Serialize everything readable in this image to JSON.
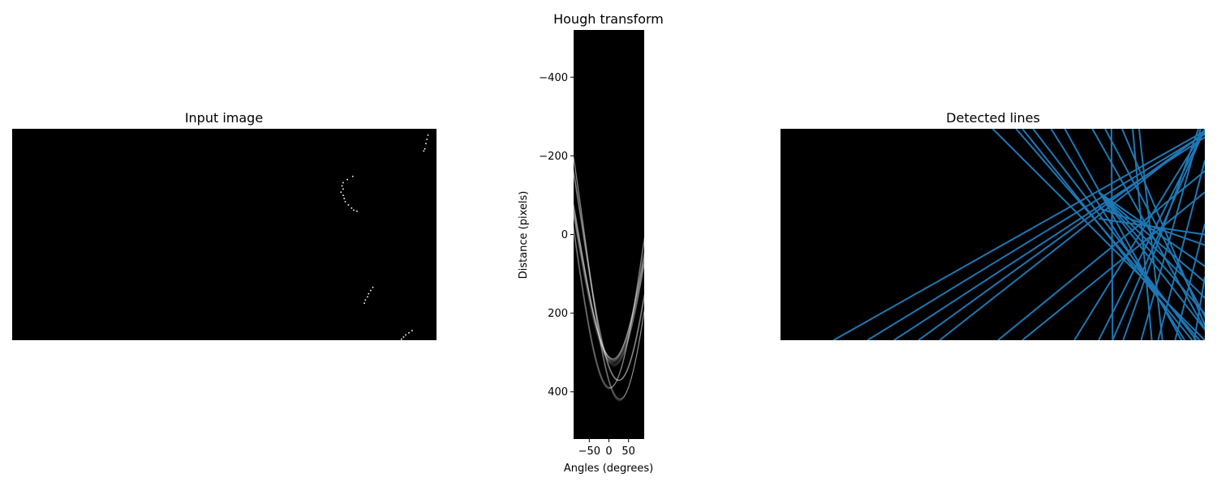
{
  "chart_data": [
    {
      "type": "image",
      "title": "Input image",
      "axes_visible": false,
      "background": "#000000",
      "point_color": "#ffffff",
      "extent": {
        "x": [
          0,
          400
        ],
        "y": [
          0,
          200
        ]
      },
      "points": [
        [
          392,
          6
        ],
        [
          391,
          10
        ],
        [
          390,
          14
        ],
        [
          389,
          19
        ],
        [
          388,
          21
        ],
        [
          321,
          45
        ],
        [
          316,
          48
        ],
        [
          312,
          51
        ],
        [
          311,
          54
        ],
        [
          312,
          57
        ],
        [
          310,
          60
        ],
        [
          312,
          63
        ],
        [
          313,
          66
        ],
        [
          314,
          69
        ],
        [
          317,
          72
        ],
        [
          320,
          75
        ],
        [
          322,
          77
        ],
        [
          325,
          78
        ],
        [
          340,
          150
        ],
        [
          338,
          153
        ],
        [
          336,
          156
        ],
        [
          335,
          159
        ],
        [
          333,
          162
        ],
        [
          332,
          165
        ],
        [
          377,
          191
        ],
        [
          374,
          193
        ],
        [
          371,
          195
        ],
        [
          369,
          197
        ],
        [
          367,
          199
        ]
      ]
    },
    {
      "type": "heatmap",
      "title": "Hough transform",
      "xlabel": "Angles (degrees)",
      "ylabel": "Distance (pixels)",
      "xlim": [
        -90,
        90
      ],
      "ylim": [
        -520,
        520
      ],
      "y_inverted": true,
      "xticks": [
        -50,
        0,
        50
      ],
      "xtick_labels": [
        "−50",
        "0",
        "50"
      ],
      "yticks": [
        -400,
        -200,
        0,
        200,
        400
      ],
      "ytick_labels": [
        "−400",
        "−200",
        "0",
        "200",
        "400"
      ],
      "colormap": "gray",
      "background": "#000000",
      "curves_from_points": "input_image.points"
    },
    {
      "type": "line_overlay",
      "title": "Detected lines",
      "axes_visible": false,
      "background": "#000000",
      "line_color": "#1f77b4",
      "extent": {
        "x": [
          0,
          400
        ],
        "y": [
          0,
          200
        ]
      },
      "lines": [
        [
          [
            200,
            0
          ],
          [
            400,
            200
          ]
        ],
        [
          [
            222,
            0
          ],
          [
            395,
            200
          ]
        ],
        [
          [
            238,
            0
          ],
          [
            392,
            200
          ]
        ],
        [
          [
            268,
            0
          ],
          [
            378,
            200
          ]
        ],
        [
          [
            255,
            0
          ],
          [
            381,
            200
          ]
        ],
        [
          [
            228,
            0
          ],
          [
            388,
            200
          ]
        ],
        [
          [
            294,
            0
          ],
          [
            406,
            200
          ]
        ],
        [
          [
            306,
            0
          ],
          [
            412,
            200
          ]
        ],
        [
          [
            322,
            0
          ],
          [
            406,
            200
          ]
        ],
        [
          [
            338,
            0
          ],
          [
            360,
            200
          ]
        ],
        [
          [
            312,
            0
          ],
          [
            313,
            200
          ]
        ],
        [
          [
            332,
            0
          ],
          [
            350,
            200
          ]
        ],
        [
          [
            50,
            200
          ],
          [
            400,
            2
          ]
        ],
        [
          [
            82,
            200
          ],
          [
            400,
            5
          ]
        ],
        [
          [
            107,
            200
          ],
          [
            400,
            8
          ]
        ],
        [
          [
            130,
            200
          ],
          [
            400,
            4
          ]
        ],
        [
          [
            150,
            200
          ],
          [
            400,
            3
          ]
        ],
        [
          [
            205,
            200
          ],
          [
            400,
            40
          ]
        ],
        [
          [
            228,
            200
          ],
          [
            400,
            60
          ]
        ],
        [
          [
            277,
            200
          ],
          [
            400,
            0
          ]
        ],
        [
          [
            300,
            200
          ],
          [
            400,
            0
          ]
        ],
        [
          [
            313,
            200
          ],
          [
            400,
            0
          ]
        ],
        [
          [
            323,
            200
          ],
          [
            394,
            0
          ]
        ],
        [
          [
            340,
            200
          ],
          [
            396,
            0
          ]
        ],
        [
          [
            356,
            200
          ],
          [
            400,
            30
          ]
        ],
        [
          [
            372,
            200
          ],
          [
            400,
            90
          ]
        ],
        [
          [
            390,
            200
          ],
          [
            400,
            140
          ]
        ],
        [
          [
            300,
            60
          ],
          [
            400,
            130
          ]
        ],
        [
          [
            300,
            60
          ],
          [
            400,
            145
          ]
        ],
        [
          [
            300,
            60
          ],
          [
            400,
            160
          ]
        ],
        [
          [
            300,
            60
          ],
          [
            400,
            175
          ]
        ],
        [
          [
            300,
            60
          ],
          [
            400,
            190
          ]
        ],
        [
          [
            300,
            75
          ],
          [
            400,
            110
          ]
        ],
        [
          [
            300,
            85
          ],
          [
            400,
            100
          ]
        ]
      ]
    }
  ]
}
